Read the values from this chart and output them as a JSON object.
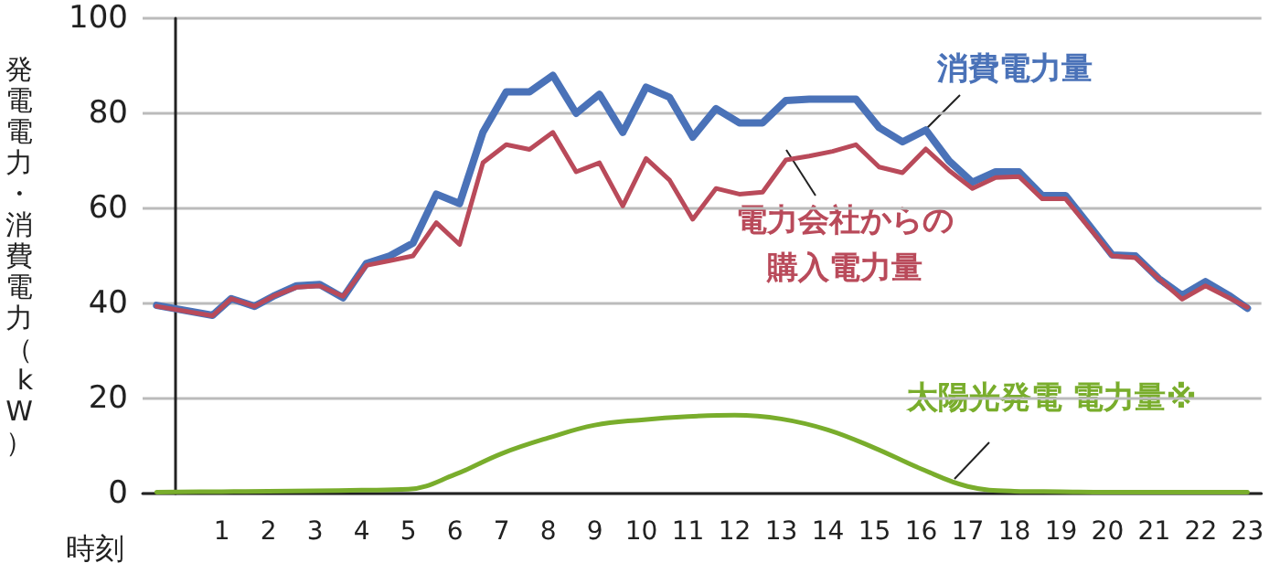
{
  "chart_data": {
    "type": "line",
    "xlabel": "時刻",
    "ylabel": "発電電力・消費電力（kW）",
    "x": [
      -0.4,
      0.8,
      1.2,
      1.7,
      2.1,
      2.6,
      3.1,
      3.6,
      4.1,
      4.6,
      5.1,
      5.6,
      6.1,
      6.6,
      7.1,
      7.6,
      8.1,
      8.6,
      9.1,
      9.6,
      10.1,
      10.6,
      11.1,
      11.6,
      12.1,
      12.6,
      13.1,
      13.6,
      14.1,
      14.6,
      15.1,
      15.6,
      16.1,
      16.6,
      17.1,
      17.6,
      18.1,
      18.6,
      19.1,
      19.6,
      20.1,
      20.6,
      21.1,
      21.6,
      22.1,
      22.6,
      23.0
    ],
    "series": [
      {
        "name": "消費電力量",
        "color": "#4a72b8",
        "values": [
          39.6,
          37.5,
          41,
          39.4,
          41.5,
          43.7,
          44,
          41.2,
          48.4,
          50,
          52.7,
          63,
          61,
          76,
          84.5,
          84.5,
          88,
          80,
          84,
          76,
          85.5,
          83.4,
          75,
          81,
          78,
          78,
          82.7,
          83,
          83,
          83,
          77,
          74,
          76.5,
          70,
          65.5,
          67.7,
          67.7,
          62.7,
          62.7,
          56.5,
          50.2,
          50,
          45.2,
          41.7,
          44.6,
          41.7,
          39
        ]
      },
      {
        "name": "電力会社からの購入電力量",
        "color": "#b94a5a",
        "values": [
          39.4,
          37.4,
          41,
          39.4,
          41.5,
          43.4,
          43.7,
          41.5,
          48,
          49,
          50,
          57,
          52.4,
          69.6,
          73.4,
          72.4,
          76,
          67.7,
          69.6,
          60.5,
          70.5,
          66,
          57.7,
          64.2,
          63,
          63.4,
          70.2,
          71,
          72,
          73.4,
          68.7,
          67.5,
          72.5,
          68,
          64.2,
          66.5,
          66.7,
          62,
          62,
          56,
          50,
          49.6,
          45.2,
          40.9,
          43.7,
          41.2,
          39.2
        ]
      },
      {
        "name": "太陽光発電 電力量※",
        "color": "#79ad2c",
        "x": [
          -0.4,
          1,
          2,
          3,
          4,
          5,
          6,
          7,
          8,
          9,
          10,
          11,
          12,
          13,
          14,
          15,
          16,
          17,
          18,
          19,
          20,
          21,
          22,
          23
        ],
        "values": [
          0.3,
          0.4,
          0.5,
          0.6,
          0.7,
          0.9,
          4,
          8.4,
          11.7,
          14.4,
          15.5,
          16.2,
          16.5,
          15.7,
          13.4,
          9.6,
          5.2,
          1.5,
          0.5,
          0.4,
          0.3,
          0.3,
          0.3,
          0.3
        ]
      }
    ],
    "xlim": [
      -0.7,
      23.3
    ],
    "xticks": [
      1,
      2,
      3,
      4,
      5,
      6,
      7,
      8,
      9,
      10,
      11,
      12,
      13,
      14,
      15,
      16,
      17,
      18,
      19,
      20,
      21,
      22,
      23
    ],
    "ylim": [
      0,
      100
    ],
    "yticks": [
      0,
      20,
      40,
      60,
      80,
      100
    ],
    "grid": "y",
    "marker": "none",
    "line_style": "solid",
    "legend": false
  }
}
